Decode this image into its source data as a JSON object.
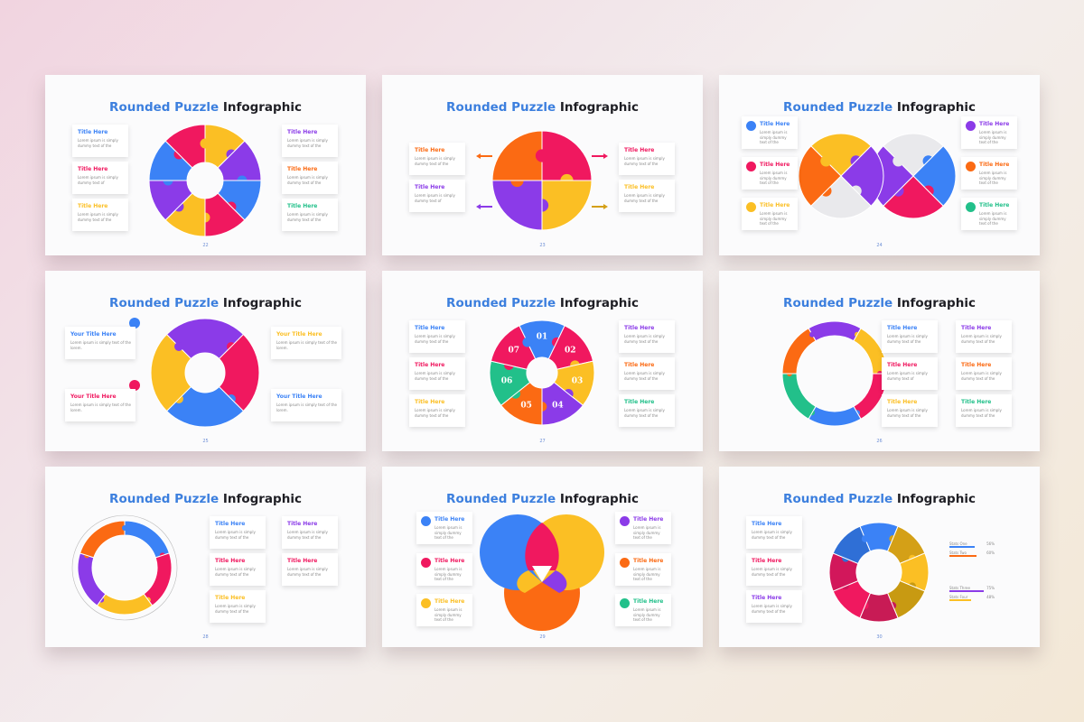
{
  "slides": [
    {
      "title": {
        "accent": "Rounded Puzzle",
        "rest": "Infographic"
      },
      "page": "22",
      "items": [
        {
          "title": "Title Here",
          "text": "Lorem ipsum is simply dummy text of the"
        },
        {
          "title": "Title Here",
          "text": "Lorem ipsum is simply dummy text of"
        },
        {
          "title": "Title Here",
          "text": "Lorem ipsum is simply dummy text of the"
        },
        {
          "title": "Title Here",
          "text": "Lorem ipsum is simply dummy text of the"
        },
        {
          "title": "Title Here",
          "text": "Lorem ipsum is simply dummy text of the"
        },
        {
          "title": "Title Here",
          "text": "Lorem ipsum is simply dummy text of the"
        }
      ]
    },
    {
      "title": {
        "accent": "Rounded Puzzle",
        "rest": "Infographic"
      },
      "page": "23",
      "items": [
        {
          "title": "Title Here",
          "text": "Lorem ipsum is simply dummy text of the"
        },
        {
          "title": "Title Here",
          "text": "Lorem ipsum is simply dummy text of"
        },
        {
          "title": "Title Here",
          "text": "Lorem ipsum is simply dummy text of the"
        },
        {
          "title": "Title Here",
          "text": "Lorem ipsum is simply dummy text of the"
        }
      ]
    },
    {
      "title": {
        "accent": "Rounded Puzzle",
        "rest": "Infographic"
      },
      "page": "24",
      "items": [
        {
          "title": "Title Here",
          "text": "Lorem ipsum is simply dummy text of the"
        },
        {
          "title": "Title Here",
          "text": "Lorem ipsum is simply dummy text of the"
        },
        {
          "title": "Title Here",
          "text": "Lorem ipsum is simply dummy text of the"
        },
        {
          "title": "Title Here",
          "text": "Lorem ipsum is simply dummy text of the"
        },
        {
          "title": "Title Here",
          "text": "Lorem ipsum is simply dummy text of the"
        },
        {
          "title": "Title Here",
          "text": "Lorem ipsum is simply dummy text of the"
        }
      ]
    },
    {
      "title": {
        "accent": "Rounded Puzzle",
        "rest": "Infographic"
      },
      "page": "25",
      "items": [
        {
          "title": "Your Title Here",
          "text": "Lorem ipsum is simply text of the lorem."
        },
        {
          "title": "Your Title Here",
          "text": "Lorem ipsum is simply text of the lorem."
        },
        {
          "title": "Your Title Here",
          "text": "Lorem ipsum is simply text of the lorem."
        },
        {
          "title": "Your Title Here",
          "text": "Lorem ipsum is simply text of the lorem."
        }
      ]
    },
    {
      "title": {
        "accent": "Rounded Puzzle",
        "rest": "Infographic"
      },
      "page": "27",
      "numbers": [
        "01",
        "02",
        "03",
        "04",
        "05",
        "06",
        "07"
      ],
      "items": [
        {
          "title": "Title Here",
          "text": "Lorem ipsum is simply dummy text of the"
        },
        {
          "title": "Title Here",
          "text": "Lorem ipsum is simply dummy text of the"
        },
        {
          "title": "Title Here",
          "text": "Lorem ipsum is simply dummy text of the"
        },
        {
          "title": "Title Here",
          "text": "Lorem ipsum is simply dummy text of the"
        },
        {
          "title": "Title Here",
          "text": "Lorem ipsum is simply dummy text of the"
        },
        {
          "title": "Title Here",
          "text": "Lorem ipsum is simply dummy text of the"
        }
      ]
    },
    {
      "title": {
        "accent": "Rounded Puzzle",
        "rest": "Infographic"
      },
      "page": "26",
      "items": [
        {
          "title": "Title Here",
          "text": "Lorem ipsum is simply dummy text of the"
        },
        {
          "title": "Title Here",
          "text": "Lorem ipsum is simply dummy text of"
        },
        {
          "title": "Title Here",
          "text": "Lorem ipsum is simply dummy text of the"
        },
        {
          "title": "Title Here",
          "text": "Lorem ipsum is simply dummy text of the"
        },
        {
          "title": "Title Here",
          "text": "Lorem ipsum is simply dummy text of the"
        },
        {
          "title": "Title Here",
          "text": "Lorem ipsum is simply dummy text of the"
        }
      ]
    },
    {
      "title": {
        "accent": "Rounded Puzzle",
        "rest": "Infographic"
      },
      "page": "28",
      "items": [
        {
          "title": "Title Here",
          "text": "Lorem ipsum is simply dummy text of the"
        },
        {
          "title": "Title Here",
          "text": "Lorem ipsum is simply dummy text of the"
        },
        {
          "title": "Title Here",
          "text": "Lorem ipsum is simply dummy text of the"
        },
        {
          "title": "Title Here",
          "text": "Lorem ipsum is simply dummy text of the"
        },
        {
          "title": "Title Here",
          "text": "Lorem ipsum is simply dummy text of the"
        }
      ]
    },
    {
      "title": {
        "accent": "Rounded Puzzle",
        "rest": "Infographic"
      },
      "page": "29",
      "items": [
        {
          "title": "Title Here",
          "text": "Lorem ipsum is simply dummy text of the"
        },
        {
          "title": "Title Here",
          "text": "Lorem ipsum is simply dummy text of the"
        },
        {
          "title": "Title Here",
          "text": "Lorem ipsum is simply dummy text of the"
        },
        {
          "title": "Title Here",
          "text": "Lorem ipsum is simply dummy text of the"
        },
        {
          "title": "Title Here",
          "text": "Lorem ipsum is simply dummy text of the"
        },
        {
          "title": "Title Here",
          "text": "Lorem ipsum is simply dummy text of the"
        }
      ]
    },
    {
      "title": {
        "accent": "Rounded Puzzle",
        "rest": "Infographic"
      },
      "page": "30",
      "items": [
        {
          "title": "Title Here",
          "text": "Lorem ipsum is simply dummy text of the"
        },
        {
          "title": "Title Here",
          "text": "Lorem ipsum is simply dummy text of the"
        },
        {
          "title": "Title Here",
          "text": "Lorem ipsum is simply dummy text of the"
        }
      ],
      "stats": [
        {
          "label": "Stats One",
          "value": "56%"
        },
        {
          "label": "Stats Two",
          "value": "60%"
        },
        {
          "label": "Stats Three",
          "value": "75%"
        },
        {
          "label": "Stats Four",
          "value": "48%"
        }
      ]
    }
  ]
}
